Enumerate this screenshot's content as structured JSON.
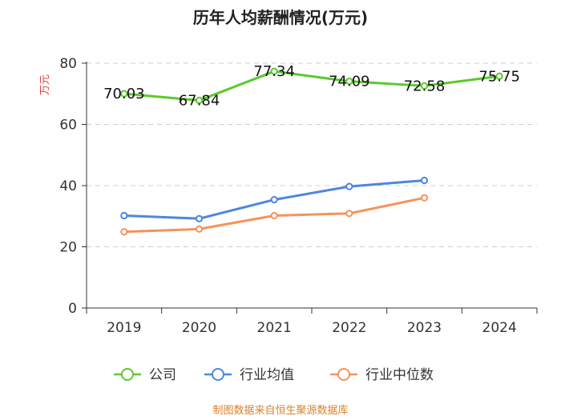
{
  "chart_data": {
    "type": "line",
    "title": "历年人均薪酬情况(万元)",
    "ylabel": "万元",
    "xlabel": "",
    "categories": [
      "2019",
      "2020",
      "2021",
      "2022",
      "2023",
      "2024"
    ],
    "ylim": [
      0,
      80
    ],
    "yticks": [
      0,
      20,
      40,
      60,
      80
    ],
    "grid": true,
    "legend_position": "bottom",
    "series": [
      {
        "name": "公司",
        "color": "#5cc92e",
        "values": [
          70.03,
          67.84,
          77.34,
          74.09,
          72.58,
          75.75
        ],
        "labels": [
          "70.03",
          "67.84",
          "77.34",
          "74.09",
          "72.58",
          "75.75"
        ]
      },
      {
        "name": "行业均值",
        "color": "#4f86e0",
        "values": [
          30.2,
          29.2,
          35.4,
          39.7,
          41.7,
          null
        ]
      },
      {
        "name": "行业中位数",
        "color": "#f5935a",
        "values": [
          24.9,
          25.8,
          30.2,
          30.9,
          36.0,
          null
        ]
      }
    ]
  },
  "source_text": "制图数据来自恒生聚源数据库"
}
